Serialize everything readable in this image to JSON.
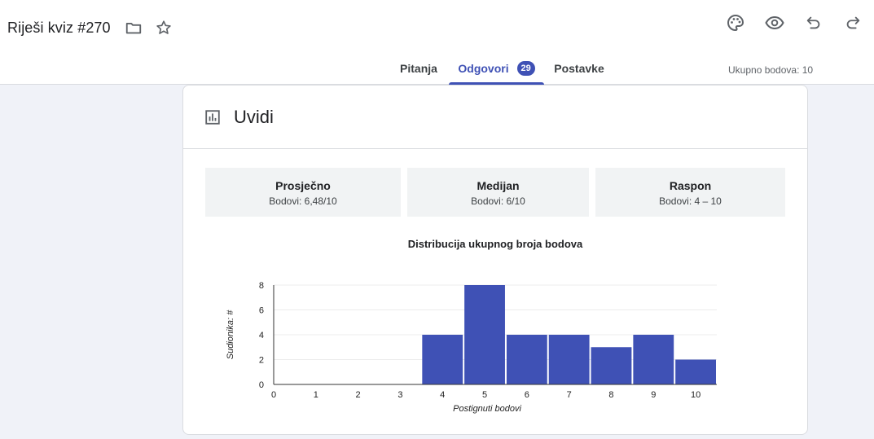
{
  "header": {
    "title": "Riješi kviz #270",
    "icons": {
      "folder": "folder-icon",
      "star": "star-icon",
      "palette": "palette-icon",
      "preview": "eye-icon",
      "undo": "undo-icon",
      "redo": "redo-icon"
    }
  },
  "tabs": [
    {
      "label": "Pitanja"
    },
    {
      "label": "Odgovori",
      "badge": "29",
      "active": true
    },
    {
      "label": "Postavke"
    }
  ],
  "total_points": "Ukupno bodova: 10",
  "card": {
    "title": "Uvidi",
    "icon": "insights-icon"
  },
  "stats": [
    {
      "label": "Prosječno",
      "value": "Bodovi: 6,48/10"
    },
    {
      "label": "Medijan",
      "value": "Bodovi: 6/10"
    },
    {
      "label": "Raspon",
      "value": "Bodovi: 4 – 10"
    }
  ],
  "chart_data": {
    "type": "bar",
    "title": "Distribucija ukupnog broja bodova",
    "xlabel": "Postignuti bodovi",
    "ylabel": "Sudionika: #",
    "categories": [
      "0",
      "1",
      "2",
      "3",
      "4",
      "5",
      "6",
      "7",
      "8",
      "9",
      "10"
    ],
    "values": [
      0,
      0,
      0,
      0,
      4,
      8,
      4,
      4,
      3,
      4,
      2
    ],
    "yticks": [
      "0",
      "2",
      "4",
      "6",
      "8"
    ],
    "ylim": [
      0,
      8
    ],
    "grid": true,
    "color": "#3f51b5"
  }
}
